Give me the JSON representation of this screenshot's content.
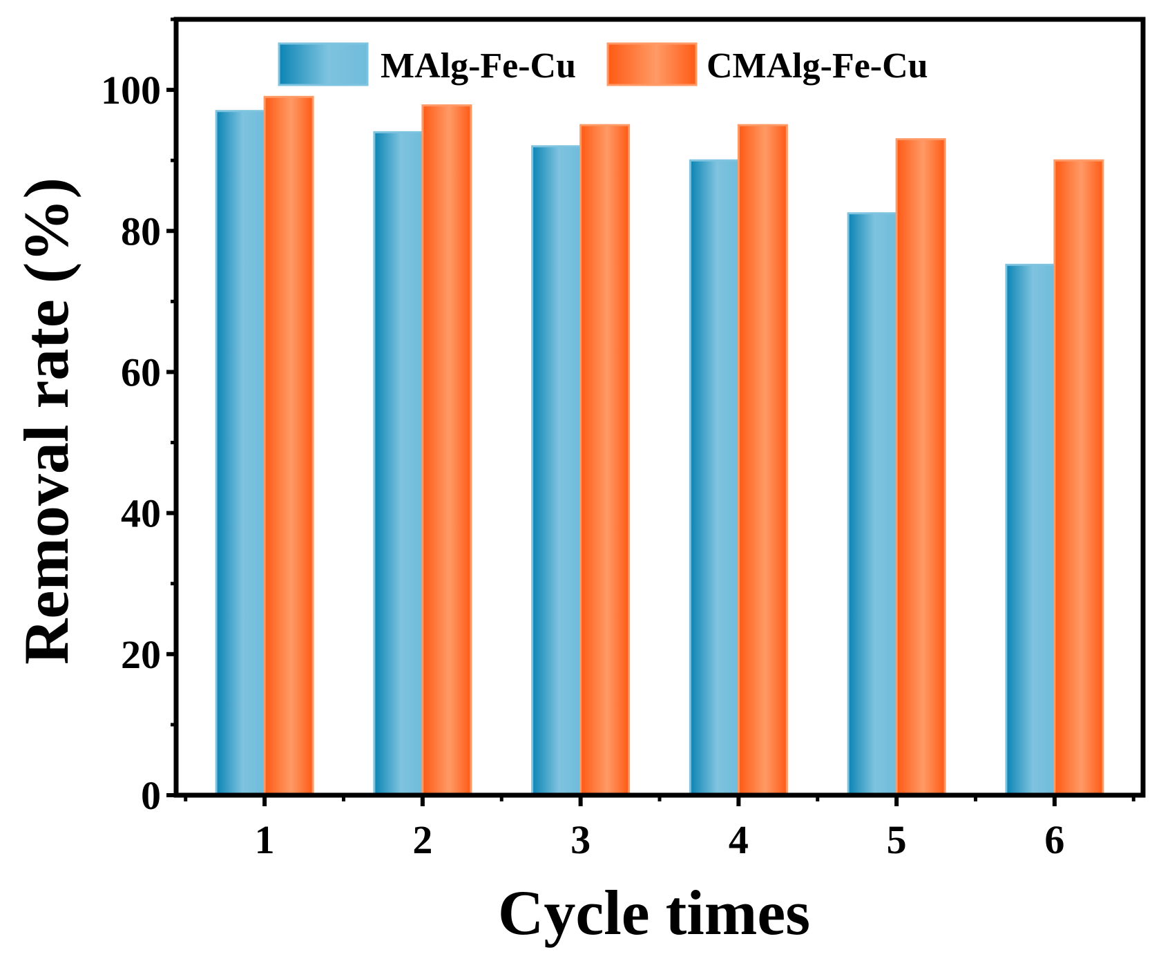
{
  "chart_data": {
    "type": "bar",
    "categories": [
      "1",
      "2",
      "3",
      "4",
      "5",
      "6"
    ],
    "series": [
      {
        "name": "MAlg-Fe-Cu",
        "values": [
          97,
          94,
          92,
          90,
          82.5,
          75.2
        ],
        "colors": {
          "dark": "#0b84b4",
          "light": "#7ec3df"
        }
      },
      {
        "name": "CMAlg-Fe-Cu",
        "values": [
          99,
          97.8,
          95,
          95,
          93,
          90
        ],
        "colors": {
          "dark": "#ff5a14",
          "light": "#ff9a66"
        }
      }
    ],
    "title": "",
    "xlabel": "Cycle times",
    "ylabel": "Removal rate (%)",
    "ylim": [
      0,
      110
    ],
    "yticks": [
      0,
      20,
      40,
      60,
      80,
      100
    ],
    "yminor": [
      10,
      30,
      50,
      70,
      90,
      110
    ],
    "grid": false,
    "legend": "top-center"
  }
}
